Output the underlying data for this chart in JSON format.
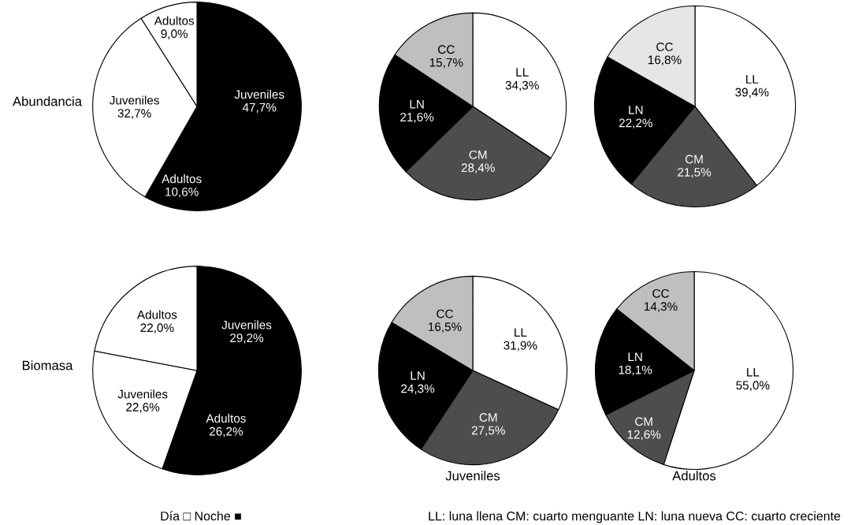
{
  "chart_data": [
    {
      "type": "pie",
      "ylabel": "Abundancia",
      "categories": [
        "Juveniles",
        "Adultos",
        "Juveniles",
        "Adultos"
      ],
      "values": [
        47.7,
        10.6,
        32.7,
        9.0
      ],
      "value_labels": [
        "47,7%",
        "10,6%",
        "32,7%",
        "9,0%"
      ],
      "colors": [
        "#000000",
        "#000000",
        "#ffffff",
        "#ffffff"
      ]
    },
    {
      "type": "pie",
      "categories": [
        "LL",
        "CM",
        "LN",
        "CC"
      ],
      "values": [
        34.3,
        28.4,
        21.6,
        15.7
      ],
      "value_labels": [
        "34,3%",
        "28,4%",
        "21,6%",
        "15,7%"
      ],
      "colors": [
        "#ffffff",
        "#4d4d4d",
        "#000000",
        "#bfbfbf"
      ]
    },
    {
      "type": "pie",
      "categories": [
        "LL",
        "CM",
        "LN",
        "CC"
      ],
      "values": [
        39.4,
        21.5,
        22.2,
        16.8
      ],
      "value_labels": [
        "39,4%",
        "21,5%",
        "22,2%",
        "16,8%"
      ],
      "colors": [
        "#ffffff",
        "#4d4d4d",
        "#000000",
        "#e6e6e6"
      ]
    },
    {
      "type": "pie",
      "ylabel": "Biomasa",
      "categories": [
        "Juveniles",
        "Adultos",
        "Juveniles",
        "Adultos"
      ],
      "values": [
        29.2,
        26.2,
        22.6,
        22.0
      ],
      "value_labels": [
        "29,2%",
        "26,2%",
        "22,6%",
        "22,0%"
      ],
      "colors": [
        "#000000",
        "#000000",
        "#ffffff",
        "#ffffff"
      ],
      "annotations": [
        "Día □ Noche ■"
      ]
    },
    {
      "type": "pie",
      "xlabel": "Juveniles",
      "categories": [
        "LL",
        "CM",
        "LN",
        "CC"
      ],
      "values": [
        31.9,
        27.5,
        24.3,
        16.5
      ],
      "value_labels": [
        "31,9%",
        "27,5%",
        "24,3%",
        "16,5%"
      ],
      "colors": [
        "#ffffff",
        "#4d4d4d",
        "#000000",
        "#bfbfbf"
      ],
      "annotations": [
        "LL: luna llena CM: cuarto menguante LN: luna nueva CC: cuarto creciente"
      ]
    },
    {
      "type": "pie",
      "xlabel": "Adultos",
      "categories": [
        "LL",
        "CM",
        "LN",
        "CC"
      ],
      "values": [
        55.0,
        12.6,
        18.1,
        14.3
      ],
      "value_labels": [
        "55,0%",
        "12,6%",
        "18,1%",
        "14,3%"
      ],
      "colors": [
        "#ffffff",
        "#4d4d4d",
        "#000000",
        "#bfbfbf"
      ]
    }
  ]
}
